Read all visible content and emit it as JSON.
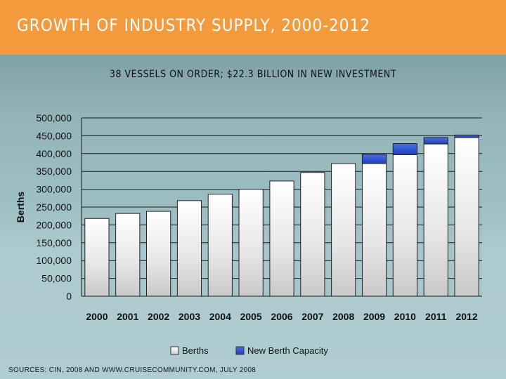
{
  "header": {
    "title": "GROWTH OF INDUSTRY SUPPLY, 2000-2012"
  },
  "subtitle": "38 VESSELS ON ORDER; $22.3 BILLION IN NEW INVESTMENT",
  "footer": {
    "source": "SOURCES: CIN, 2008 AND WWW.CRUISECOMMUNITY.COM, JULY 2008"
  },
  "chart_data": {
    "type": "bar",
    "stacked": true,
    "title": "",
    "xlabel": "",
    "ylabel": "Berths",
    "ylim": [
      0,
      500000
    ],
    "yticks": [
      "0",
      "50,000",
      "100,000",
      "150,000",
      "200,000",
      "250,000",
      "300,000",
      "350,000",
      "400,000",
      "450,000",
      "500,000"
    ],
    "categories": [
      "2000",
      "2001",
      "2002",
      "2003",
      "2004",
      "2005",
      "2006",
      "2007",
      "2008",
      "2009",
      "2010",
      "2011",
      "2012"
    ],
    "series": [
      {
        "name": "Berths",
        "color": "#e8e8e8",
        "values": [
          218000,
          232000,
          238000,
          268000,
          286000,
          300000,
          323000,
          347000,
          372000,
          372000,
          397000,
          427000,
          445000
        ]
      },
      {
        "name": "New Berth Capacity",
        "color": "#2c4fd6",
        "values": [
          0,
          0,
          0,
          0,
          0,
          0,
          0,
          0,
          0,
          26000,
          31000,
          18000,
          7000
        ]
      }
    ],
    "legend_position": "bottom-center",
    "grid": true
  }
}
